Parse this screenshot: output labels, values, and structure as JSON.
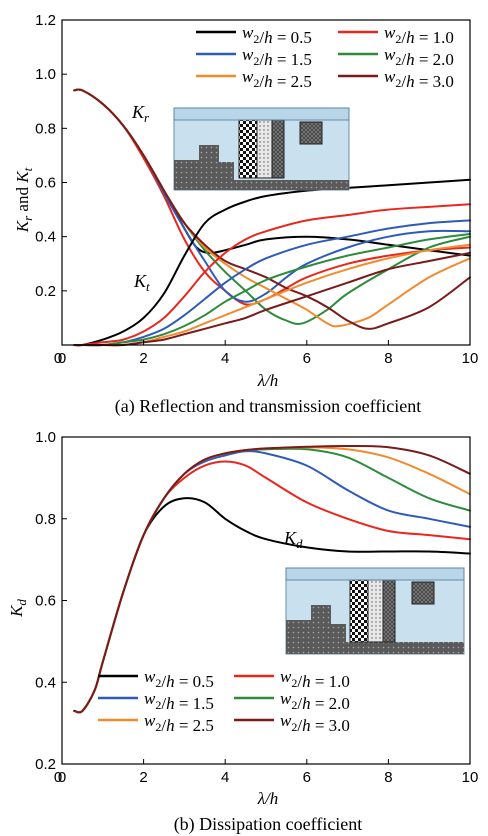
{
  "colors": {
    "w05": "#000000",
    "w10": "#e8281e",
    "w15": "#2e5bb8",
    "w20": "#2e8b3e",
    "w25": "#f28a2e",
    "w30": "#7a1a1a"
  },
  "legend": [
    {
      "key": "w05",
      "pre": "w",
      "sub": "2",
      "post": "/h = 0.5"
    },
    {
      "key": "w10",
      "pre": "w",
      "sub": "2",
      "post": "/h = 1.0"
    },
    {
      "key": "w15",
      "pre": "w",
      "sub": "2",
      "post": "/h = 1.5"
    },
    {
      "key": "w20",
      "pre": "w",
      "sub": "2",
      "post": "/h = 2.0"
    },
    {
      "key": "w25",
      "pre": "w",
      "sub": "2",
      "post": "/h = 2.5"
    },
    {
      "key": "w30",
      "pre": "w",
      "sub": "2",
      "post": "/h = 3.0"
    }
  ],
  "chart_data": [
    {
      "type": "line",
      "caption": "(a) Reflection and transmission coefficient",
      "xlabel": "λ/h",
      "ylabel": "K_r and K_t",
      "xlim": [
        0,
        10
      ],
      "ylim": [
        0,
        1.2
      ],
      "xticks": [
        "0",
        "2",
        "4",
        "6",
        "8",
        "10"
      ],
      "yticks": [
        "0.2",
        "0.4",
        "0.6",
        "0.8",
        "1.0",
        "1.2"
      ],
      "legend_position": "top-right",
      "annotations": [
        {
          "text": "K_r"
        },
        {
          "text": "K_t"
        }
      ],
      "series": [
        {
          "key": "w05",
          "group": "Kr",
          "x": [
            0.3,
            0.5,
            1,
            1.5,
            2,
            2.5,
            3,
            3.3,
            3.6,
            4,
            4.5,
            5,
            6,
            7,
            8,
            9,
            10
          ],
          "y": [
            0.94,
            0.94,
            0.89,
            0.81,
            0.7,
            0.57,
            0.43,
            0.36,
            0.34,
            0.35,
            0.37,
            0.39,
            0.4,
            0.39,
            0.37,
            0.35,
            0.33
          ]
        },
        {
          "key": "w10",
          "group": "Kr",
          "x": [
            0.3,
            0.5,
            1,
            1.5,
            2,
            2.5,
            3,
            3.5,
            4,
            4.5,
            5,
            5.5,
            6,
            7,
            8,
            9,
            10
          ],
          "y": [
            0.94,
            0.94,
            0.89,
            0.81,
            0.69,
            0.55,
            0.39,
            0.27,
            0.2,
            0.15,
            0.17,
            0.21,
            0.25,
            0.3,
            0.33,
            0.35,
            0.36
          ]
        },
        {
          "key": "w15",
          "group": "Kr",
          "x": [
            0.3,
            0.5,
            1,
            1.5,
            2,
            2.5,
            3,
            3.5,
            4,
            4.5,
            5,
            5.5,
            6,
            7,
            8,
            9,
            10
          ],
          "y": [
            0.94,
            0.94,
            0.89,
            0.81,
            0.7,
            0.56,
            0.43,
            0.31,
            0.2,
            0.16,
            0.19,
            0.25,
            0.3,
            0.36,
            0.4,
            0.42,
            0.42
          ]
        },
        {
          "key": "w20",
          "group": "Kr",
          "x": [
            0.3,
            0.5,
            1,
            1.5,
            2,
            2.5,
            3,
            3.5,
            4,
            4.5,
            5,
            5.5,
            5.9,
            6.5,
            7,
            8,
            9,
            10
          ],
          "y": [
            0.94,
            0.94,
            0.89,
            0.81,
            0.7,
            0.57,
            0.45,
            0.35,
            0.27,
            0.2,
            0.13,
            0.09,
            0.08,
            0.13,
            0.19,
            0.28,
            0.36,
            0.4
          ]
        },
        {
          "key": "w25",
          "group": "Kr",
          "x": [
            0.3,
            0.5,
            1,
            1.5,
            2,
            2.5,
            3,
            3.5,
            4,
            4.5,
            5,
            5.5,
            6,
            6.5,
            6.8,
            7.5,
            8,
            9,
            10
          ],
          "y": [
            0.94,
            0.94,
            0.89,
            0.81,
            0.7,
            0.57,
            0.45,
            0.36,
            0.3,
            0.25,
            0.21,
            0.17,
            0.13,
            0.08,
            0.07,
            0.1,
            0.15,
            0.25,
            0.32
          ]
        },
        {
          "key": "w30",
          "group": "Kr",
          "x": [
            0.3,
            0.5,
            1,
            1.5,
            2,
            2.5,
            3,
            3.5,
            4,
            4.5,
            5,
            5.5,
            6,
            6.5,
            7,
            7.5,
            8,
            9,
            10
          ],
          "y": [
            0.94,
            0.94,
            0.89,
            0.81,
            0.7,
            0.57,
            0.45,
            0.37,
            0.31,
            0.28,
            0.25,
            0.21,
            0.18,
            0.14,
            0.09,
            0.06,
            0.08,
            0.14,
            0.25
          ]
        },
        {
          "key": "w05",
          "group": "Kt",
          "x": [
            0.3,
            0.5,
            1,
            1.5,
            2,
            2.5,
            3,
            3.5,
            4,
            4.5,
            5,
            6,
            7,
            8,
            9,
            10
          ],
          "y": [
            0.0,
            0.0,
            0.02,
            0.05,
            0.1,
            0.19,
            0.33,
            0.45,
            0.5,
            0.53,
            0.55,
            0.57,
            0.58,
            0.59,
            0.6,
            0.61
          ]
        },
        {
          "key": "w10",
          "group": "Kt",
          "x": [
            0.3,
            0.5,
            1,
            1.5,
            2,
            2.5,
            3,
            3.5,
            4,
            4.5,
            5,
            6,
            7,
            8,
            9,
            10
          ],
          "y": [
            0.0,
            0.0,
            0.01,
            0.02,
            0.05,
            0.1,
            0.18,
            0.27,
            0.34,
            0.39,
            0.42,
            0.46,
            0.48,
            0.5,
            0.51,
            0.52
          ]
        },
        {
          "key": "w15",
          "group": "Kt",
          "x": [
            0.3,
            0.5,
            1,
            1.5,
            2,
            2.5,
            3,
            3.5,
            4,
            4.5,
            5,
            6,
            7,
            8,
            9,
            10
          ],
          "y": [
            0.0,
            0.0,
            0.0,
            0.01,
            0.03,
            0.06,
            0.11,
            0.17,
            0.23,
            0.28,
            0.32,
            0.37,
            0.4,
            0.43,
            0.45,
            0.46
          ]
        },
        {
          "key": "w20",
          "group": "Kt",
          "x": [
            0.3,
            0.5,
            1,
            1.5,
            2,
            2.5,
            3,
            3.5,
            4,
            4.5,
            5,
            6,
            7,
            8,
            9,
            10
          ],
          "y": [
            0.0,
            0.0,
            0.0,
            0.01,
            0.02,
            0.04,
            0.07,
            0.11,
            0.16,
            0.2,
            0.24,
            0.29,
            0.33,
            0.36,
            0.39,
            0.41
          ]
        },
        {
          "key": "w25",
          "group": "Kt",
          "x": [
            0.3,
            0.5,
            1,
            1.5,
            2,
            2.5,
            3,
            3.5,
            4,
            4.5,
            5,
            6,
            7,
            8,
            9,
            10
          ],
          "y": [
            0.0,
            0.0,
            0.0,
            0.0,
            0.01,
            0.03,
            0.05,
            0.08,
            0.11,
            0.14,
            0.17,
            0.23,
            0.28,
            0.32,
            0.35,
            0.37
          ]
        },
        {
          "key": "w30",
          "group": "Kt",
          "x": [
            0.3,
            0.5,
            1,
            1.5,
            2,
            2.5,
            3,
            3.5,
            4,
            4.5,
            5,
            6,
            7,
            8,
            9,
            10
          ],
          "y": [
            0.0,
            0.0,
            0.0,
            0.0,
            0.01,
            0.02,
            0.04,
            0.06,
            0.08,
            0.1,
            0.13,
            0.18,
            0.23,
            0.28,
            0.31,
            0.34
          ]
        }
      ]
    },
    {
      "type": "line",
      "caption": "(b) Dissipation coefficient",
      "xlabel": "λ/h",
      "ylabel": "K_d",
      "xlim": [
        0,
        10
      ],
      "ylim": [
        0.2,
        1.0
      ],
      "xticks": [
        "0",
        "2",
        "4",
        "6",
        "8",
        "10"
      ],
      "yticks": [
        "0.2",
        "0.4",
        "0.6",
        "0.8",
        "1.0"
      ],
      "legend_position": "bottom-left",
      "annotations": [
        {
          "text": "K_d"
        }
      ],
      "series": [
        {
          "key": "w05",
          "x": [
            0.3,
            0.5,
            0.8,
            1,
            1.5,
            2,
            2.5,
            3,
            3.5,
            4,
            4.5,
            5,
            6,
            7,
            8,
            9,
            10
          ],
          "y": [
            0.33,
            0.33,
            0.38,
            0.45,
            0.62,
            0.76,
            0.83,
            0.85,
            0.84,
            0.8,
            0.77,
            0.75,
            0.73,
            0.72,
            0.72,
            0.72,
            0.715
          ]
        },
        {
          "key": "w10",
          "x": [
            0.3,
            0.5,
            0.8,
            1,
            1.5,
            2,
            2.5,
            3,
            3.5,
            4,
            4.5,
            5,
            6,
            7,
            8,
            9,
            10
          ],
          "y": [
            0.33,
            0.33,
            0.38,
            0.45,
            0.62,
            0.76,
            0.85,
            0.9,
            0.93,
            0.94,
            0.93,
            0.9,
            0.84,
            0.8,
            0.77,
            0.76,
            0.75
          ]
        },
        {
          "key": "w15",
          "x": [
            0.3,
            0.5,
            0.8,
            1,
            1.5,
            2,
            2.5,
            3,
            3.5,
            4,
            4.5,
            5,
            6,
            7,
            8,
            9,
            10
          ],
          "y": [
            0.33,
            0.33,
            0.38,
            0.45,
            0.62,
            0.76,
            0.85,
            0.91,
            0.94,
            0.955,
            0.965,
            0.96,
            0.93,
            0.87,
            0.82,
            0.8,
            0.78
          ]
        },
        {
          "key": "w20",
          "x": [
            0.3,
            0.5,
            0.8,
            1,
            1.5,
            2,
            2.5,
            3,
            3.5,
            4,
            4.5,
            5,
            6,
            7,
            8,
            9,
            10
          ],
          "y": [
            0.33,
            0.33,
            0.38,
            0.45,
            0.62,
            0.76,
            0.85,
            0.91,
            0.945,
            0.96,
            0.968,
            0.97,
            0.97,
            0.95,
            0.9,
            0.85,
            0.82
          ]
        },
        {
          "key": "w25",
          "x": [
            0.3,
            0.5,
            0.8,
            1,
            1.5,
            2,
            2.5,
            3,
            3.5,
            4,
            4.5,
            5,
            6,
            7,
            8,
            9,
            10
          ],
          "y": [
            0.33,
            0.33,
            0.38,
            0.45,
            0.62,
            0.76,
            0.85,
            0.91,
            0.945,
            0.96,
            0.968,
            0.972,
            0.975,
            0.97,
            0.95,
            0.91,
            0.86
          ]
        },
        {
          "key": "w30",
          "x": [
            0.3,
            0.5,
            0.8,
            1,
            1.5,
            2,
            2.5,
            3,
            3.5,
            4,
            4.5,
            5,
            6,
            7,
            8,
            9,
            10
          ],
          "y": [
            0.33,
            0.33,
            0.38,
            0.45,
            0.62,
            0.76,
            0.85,
            0.91,
            0.945,
            0.96,
            0.968,
            0.972,
            0.976,
            0.978,
            0.975,
            0.955,
            0.91
          ]
        }
      ]
    }
  ]
}
